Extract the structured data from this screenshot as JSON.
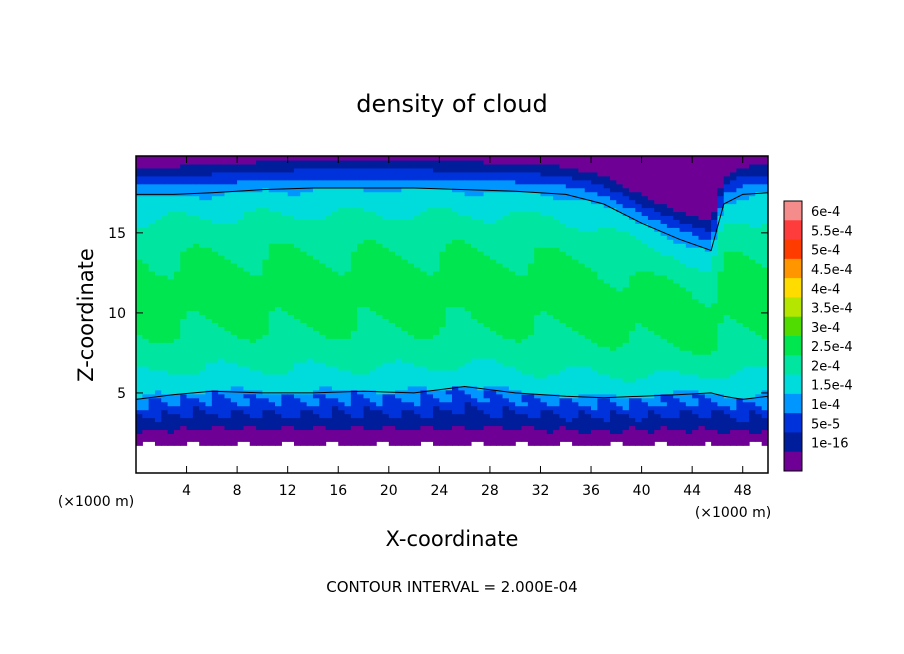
{
  "chart_data": {
    "type": "heatmap",
    "title": "density of cloud",
    "xlabel": "X-coordinate",
    "ylabel": "Z-coordinate",
    "x_unit": "(×1000 m)",
    "x_unit_right": "(×1000 m)",
    "xlim": [
      0,
      50
    ],
    "ylim": [
      0,
      19.8
    ],
    "x_ticks": [
      4,
      8,
      12,
      16,
      20,
      24,
      28,
      32,
      36,
      40,
      44,
      48
    ],
    "y_ticks": [
      5,
      10,
      15
    ],
    "footer": "CONTOUR INTERVAL = 2.000E-04",
    "colorbar": {
      "labels": [
        "6e-4",
        "5.5e-4",
        "5e-4",
        "4.5e-4",
        "4e-4",
        "3.5e-4",
        "3e-4",
        "2.5e-4",
        "2e-4",
        "1.5e-4",
        "1e-4",
        "5e-5",
        "1e-16"
      ],
      "colors": [
        "#f48c8c",
        "#ff3c3c",
        "#ff3c00",
        "#ff9600",
        "#ffdc00",
        "#b4e600",
        "#50dc00",
        "#00e650",
        "#00e6a0",
        "#00dcdc",
        "#0096ff",
        "#0032dc",
        "#001e9b",
        "#6e0096"
      ]
    },
    "field": {
      "cloud_base": 1.8,
      "lower_contour_level": 0.0002,
      "upper_contour_level": 0.0002,
      "lower_contour_z": [
        4.6,
        4.9,
        5.1,
        5.0,
        5.0,
        5.1,
        5.0,
        5.4,
        5.0,
        4.8,
        4.7,
        4.8,
        4.9,
        5.0,
        4.8,
        4.6,
        4.8
      ],
      "upper_contour_z": [
        17.4,
        17.4,
        17.5,
        17.7,
        17.8,
        17.8,
        17.8,
        17.7,
        17.6,
        17.4,
        16.8,
        15.6,
        14.6,
        13.9,
        16.8,
        17.4,
        17.5
      ],
      "contour_x": [
        0,
        3,
        6,
        10,
        14,
        18,
        22,
        26,
        30,
        34,
        37,
        40,
        43,
        45.5,
        46.5,
        48,
        50
      ]
    }
  }
}
